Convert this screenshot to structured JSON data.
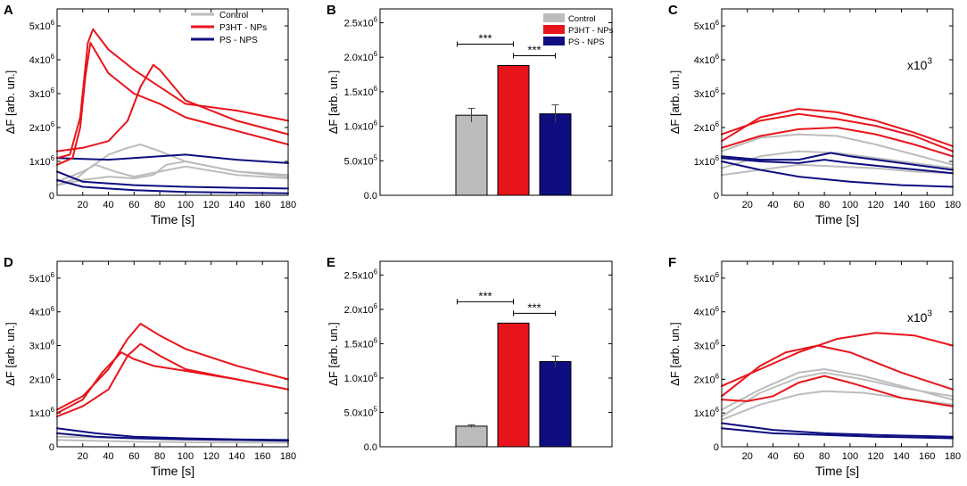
{
  "colors": {
    "control": "#bcbcbc",
    "p3ht": "#e8141b",
    "ps": "#0e0e80"
  },
  "chart_data": [
    {
      "panel": "A",
      "type": "line",
      "xlabel": "Time [s]",
      "ylabel": "ΔF [arb. un.]",
      "xlim": [
        0,
        180
      ],
      "ylim": [
        0,
        5500000
      ],
      "xticks": [
        20,
        40,
        60,
        80,
        100,
        120,
        140,
        160,
        180
      ],
      "yticks": [
        0,
        1000000,
        2000000,
        3000000,
        4000000,
        5000000
      ],
      "yticklabels": [
        "0",
        "1x10^6",
        "2x10^6",
        "3x10^6",
        "4x10^6",
        "5x10^6"
      ],
      "legend": [
        "Control",
        "P3HT - NPs",
        "PS - NPS"
      ],
      "series": [
        {
          "group": "control",
          "x": [
            0,
            15,
            25,
            40,
            55,
            65,
            80,
            100,
            140,
            180
          ],
          "values": [
            300000,
            500000,
            800000,
            1200000,
            1400000,
            1500000,
            1300000,
            1000000,
            700000,
            600000
          ]
        },
        {
          "group": "control",
          "x": [
            0,
            20,
            40,
            60,
            75,
            85,
            100,
            140,
            180
          ],
          "values": [
            300000,
            450000,
            550000,
            500000,
            600000,
            900000,
            1000000,
            700000,
            550000
          ]
        },
        {
          "group": "control",
          "x": [
            0,
            20,
            30,
            45,
            60,
            80,
            100,
            140,
            180
          ],
          "values": [
            400000,
            700000,
            900000,
            700000,
            550000,
            700000,
            850000,
            600000,
            500000
          ]
        },
        {
          "group": "p3ht",
          "x": [
            0,
            10,
            18,
            24,
            28,
            40,
            60,
            80,
            100,
            140,
            180
          ],
          "values": [
            1100000,
            1200000,
            2300000,
            4500000,
            4900000,
            4300000,
            3700000,
            3200000,
            2700000,
            2500000,
            2200000
          ]
        },
        {
          "group": "p3ht",
          "x": [
            0,
            12,
            18,
            22,
            26,
            40,
            60,
            80,
            100,
            140,
            180
          ],
          "values": [
            900000,
            1100000,
            2000000,
            3500000,
            4500000,
            3600000,
            3000000,
            2700000,
            2300000,
            1900000,
            1500000
          ]
        },
        {
          "group": "p3ht",
          "x": [
            0,
            20,
            40,
            55,
            65,
            75,
            80,
            100,
            140,
            180
          ],
          "values": [
            1300000,
            1400000,
            1600000,
            2200000,
            3200000,
            3850000,
            3700000,
            2800000,
            2200000,
            1800000
          ]
        },
        {
          "group": "ps",
          "x": [
            0,
            40,
            80,
            100,
            140,
            180
          ],
          "values": [
            1100000,
            1050000,
            1150000,
            1200000,
            1050000,
            950000
          ]
        },
        {
          "group": "ps",
          "x": [
            0,
            20,
            60,
            100,
            140,
            180
          ],
          "values": [
            700000,
            400000,
            300000,
            250000,
            220000,
            200000
          ]
        },
        {
          "group": "ps",
          "x": [
            0,
            20,
            60,
            100,
            140,
            180
          ],
          "values": [
            450000,
            250000,
            150000,
            100000,
            80000,
            60000
          ]
        }
      ]
    },
    {
      "panel": "B",
      "type": "bar",
      "ylabel": "ΔF [arb. un.]",
      "ylim": [
        0,
        2700000
      ],
      "yticks": [
        0,
        500000,
        1000000,
        1500000,
        2000000,
        2500000
      ],
      "yticklabels": [
        "0.0",
        "5.0x10^5",
        "1.0x10^6",
        "1.5x10^6",
        "2.0x10^6",
        "2.5x10^6"
      ],
      "categories": [
        "Control",
        "P3HT - NPs",
        "PS - NPS"
      ],
      "values": [
        1160000,
        1880000,
        1180000
      ],
      "errors": [
        100000,
        0,
        130000
      ],
      "legend": [
        "Control",
        "P3HT - NPs",
        "PS - NPS"
      ],
      "annotations": [
        "***",
        "***"
      ]
    },
    {
      "panel": "C",
      "type": "line",
      "xlabel": "Time [s]",
      "ylabel": "ΔF [arb. un.]",
      "xlim": [
        0,
        180
      ],
      "ylim": [
        0,
        5500000
      ],
      "xticks": [
        20,
        40,
        60,
        80,
        100,
        120,
        140,
        160,
        180
      ],
      "yticks": [
        0,
        1000000,
        2000000,
        3000000,
        4000000,
        5000000
      ],
      "yticklabels": [
        "0",
        "1x10^6",
        "2x10^6",
        "3x10^6",
        "4x10^6",
        "5x10^6"
      ],
      "annotation": "x10^3",
      "series": [
        {
          "group": "control",
          "x": [
            0,
            30,
            60,
            90,
            120,
            150,
            180
          ],
          "values": [
            1300000,
            1700000,
            1800000,
            1750000,
            1500000,
            1200000,
            900000
          ]
        },
        {
          "group": "control",
          "x": [
            0,
            30,
            60,
            90,
            120,
            150,
            180
          ],
          "values": [
            800000,
            1150000,
            1300000,
            1250000,
            1100000,
            950000,
            800000
          ]
        },
        {
          "group": "control",
          "x": [
            0,
            30,
            60,
            90,
            120,
            150,
            180
          ],
          "values": [
            600000,
            750000,
            900000,
            850000,
            800000,
            700000,
            650000
          ]
        },
        {
          "group": "p3ht",
          "x": [
            0,
            30,
            60,
            90,
            120,
            150,
            180
          ],
          "values": [
            1600000,
            2300000,
            2550000,
            2450000,
            2200000,
            1850000,
            1450000
          ]
        },
        {
          "group": "p3ht",
          "x": [
            0,
            30,
            60,
            90,
            120,
            150,
            180
          ],
          "values": [
            1800000,
            2200000,
            2400000,
            2250000,
            2050000,
            1750000,
            1300000
          ]
        },
        {
          "group": "p3ht",
          "x": [
            0,
            30,
            60,
            90,
            120,
            150,
            180
          ],
          "values": [
            1400000,
            1750000,
            1950000,
            2000000,
            1800000,
            1500000,
            1150000
          ]
        },
        {
          "group": "ps",
          "x": [
            0,
            30,
            60,
            85,
            100,
            140,
            180
          ],
          "values": [
            1150000,
            1050000,
            1050000,
            1250000,
            1150000,
            950000,
            750000
          ]
        },
        {
          "group": "ps",
          "x": [
            0,
            30,
            60,
            80,
            100,
            140,
            180
          ],
          "values": [
            1100000,
            1000000,
            950000,
            1050000,
            950000,
            800000,
            650000
          ]
        },
        {
          "group": "ps",
          "x": [
            0,
            30,
            60,
            100,
            140,
            180
          ],
          "values": [
            1000000,
            750000,
            550000,
            400000,
            300000,
            250000
          ]
        }
      ]
    },
    {
      "panel": "D",
      "type": "line",
      "xlabel": "Time [s]",
      "ylabel": "ΔF [arb. un.]",
      "xlim": [
        0,
        180
      ],
      "ylim": [
        0,
        5500000
      ],
      "xticks": [
        20,
        40,
        60,
        80,
        100,
        120,
        140,
        160,
        180
      ],
      "yticks": [
        0,
        1000000,
        2000000,
        3000000,
        4000000,
        5000000
      ],
      "yticklabels": [
        "0",
        "1x10^6",
        "2x10^6",
        "3x10^6",
        "4x10^6",
        "5x10^6"
      ],
      "series": [
        {
          "group": "control",
          "x": [
            0,
            60,
            120,
            180
          ],
          "values": [
            300000,
            250000,
            200000,
            180000
          ]
        },
        {
          "group": "control",
          "x": [
            0,
            60,
            120,
            180
          ],
          "values": [
            200000,
            150000,
            130000,
            120000
          ]
        },
        {
          "group": "p3ht",
          "x": [
            0,
            20,
            40,
            55,
            65,
            80,
            100,
            140,
            180
          ],
          "values": [
            1100000,
            1500000,
            2300000,
            3200000,
            3650000,
            3300000,
            2900000,
            2400000,
            2000000
          ]
        },
        {
          "group": "p3ht",
          "x": [
            0,
            20,
            40,
            55,
            65,
            80,
            100,
            140,
            180
          ],
          "values": [
            900000,
            1200000,
            1700000,
            2700000,
            3050000,
            2700000,
            2300000,
            2000000,
            1700000
          ]
        },
        {
          "group": "p3ht",
          "x": [
            0,
            20,
            35,
            50,
            60,
            75,
            100,
            140,
            180
          ],
          "values": [
            1000000,
            1400000,
            2200000,
            2800000,
            2600000,
            2400000,
            2250000,
            2000000,
            1700000
          ]
        },
        {
          "group": "ps",
          "x": [
            0,
            30,
            60,
            100,
            140,
            180
          ],
          "values": [
            550000,
            400000,
            300000,
            250000,
            220000,
            200000
          ]
        },
        {
          "group": "ps",
          "x": [
            0,
            30,
            60,
            100,
            140,
            180
          ],
          "values": [
            400000,
            300000,
            250000,
            220000,
            200000,
            180000
          ]
        }
      ]
    },
    {
      "panel": "E",
      "type": "bar",
      "ylabel": "ΔF [arb. un.]",
      "ylim": [
        0,
        2700000
      ],
      "yticks": [
        0,
        500000,
        1000000,
        1500000,
        2000000,
        2500000
      ],
      "yticklabels": [
        "0.0",
        "5.0x10^5",
        "1.0x10^6",
        "1.5x10^6",
        "2.0x10^6",
        "2.5x10^6"
      ],
      "categories": [
        "Control",
        "P3HT - NPs",
        "PS - NPS"
      ],
      "values": [
        300000,
        1800000,
        1240000
      ],
      "errors": [
        20000,
        0,
        80000
      ],
      "annotations": [
        "***",
        "***"
      ]
    },
    {
      "panel": "F",
      "type": "line",
      "xlabel": "Time [s]",
      "ylabel": "ΔF [arb. un.]",
      "xlim": [
        0,
        180
      ],
      "ylim": [
        0,
        5500000
      ],
      "xticks": [
        20,
        40,
        60,
        80,
        100,
        120,
        140,
        160,
        180
      ],
      "yticks": [
        0,
        1000000,
        2000000,
        3000000,
        4000000,
        5000000
      ],
      "yticklabels": [
        "0",
        "1x10^6",
        "2x10^6",
        "3x10^6",
        "4x10^6",
        "5x10^6"
      ],
      "annotation": "x10^3",
      "series": [
        {
          "group": "control",
          "x": [
            0,
            30,
            60,
            80,
            110,
            140,
            180
          ],
          "values": [
            1100000,
            1700000,
            2200000,
            2300000,
            2100000,
            1800000,
            1400000
          ]
        },
        {
          "group": "control",
          "x": [
            0,
            30,
            60,
            80,
            110,
            140,
            180
          ],
          "values": [
            900000,
            1600000,
            2050000,
            2200000,
            2000000,
            1750000,
            1500000
          ]
        },
        {
          "group": "control",
          "x": [
            0,
            30,
            60,
            80,
            110,
            140,
            180
          ],
          "values": [
            800000,
            1250000,
            1550000,
            1650000,
            1600000,
            1450000,
            1250000
          ]
        },
        {
          "group": "p3ht",
          "x": [
            0,
            30,
            60,
            90,
            120,
            150,
            180
          ],
          "values": [
            1800000,
            2300000,
            2800000,
            3200000,
            3380000,
            3300000,
            3000000
          ]
        },
        {
          "group": "p3ht",
          "x": [
            0,
            30,
            50,
            75,
            100,
            140,
            180
          ],
          "values": [
            1500000,
            2400000,
            2800000,
            3000000,
            2800000,
            2200000,
            1700000
          ]
        },
        {
          "group": "p3ht",
          "x": [
            0,
            20,
            40,
            60,
            80,
            100,
            140,
            180
          ],
          "values": [
            1400000,
            1350000,
            1500000,
            1900000,
            2100000,
            1900000,
            1450000,
            1200000
          ]
        },
        {
          "group": "ps",
          "x": [
            0,
            40,
            80,
            120,
            180
          ],
          "values": [
            700000,
            500000,
            400000,
            350000,
            300000
          ]
        },
        {
          "group": "ps",
          "x": [
            0,
            40,
            80,
            120,
            180
          ],
          "values": [
            550000,
            400000,
            350000,
            300000,
            250000
          ]
        }
      ]
    }
  ]
}
